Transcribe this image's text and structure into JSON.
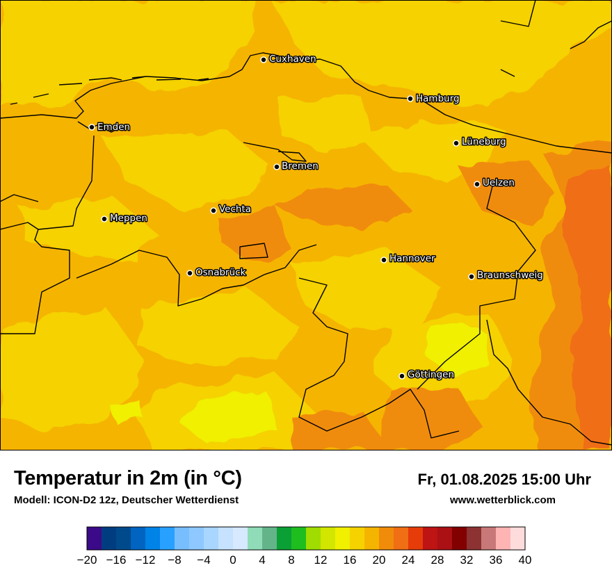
{
  "map": {
    "cities": [
      {
        "name": "Cuxhaven"
      },
      {
        "name": "Hamburg"
      },
      {
        "name": "Emden"
      },
      {
        "name": "Lüneburg"
      },
      {
        "name": "Bremen"
      },
      {
        "name": "Uelzen"
      },
      {
        "name": "Vechta"
      },
      {
        "name": "Meppen"
      },
      {
        "name": "Hannover"
      },
      {
        "name": "Osnabrück"
      },
      {
        "name": "Braunschweig"
      },
      {
        "name": "Göttingen"
      }
    ]
  },
  "footer": {
    "title": "Temperatur in 2m (in °C)",
    "model": "Modell: ICON-D2 12z, Deutscher Wetterdienst",
    "datetime": "Fr, 01.08.2025 15:00 Uhr",
    "website": "www.wetterblick.com"
  },
  "legend": {
    "unit": "°C",
    "min": -20,
    "max": 40,
    "step": 2,
    "tick_labels": [
      "−20",
      "−16",
      "−12",
      "−8",
      "−4",
      "0",
      "4",
      "8",
      "12",
      "16",
      "20",
      "24",
      "28",
      "32",
      "36",
      "40"
    ],
    "colors": [
      "#3b0a88",
      "#003d80",
      "#004a8c",
      "#0064c0",
      "#0083e6",
      "#28a0ff",
      "#78beff",
      "#8ec8ff",
      "#a8d6ff",
      "#c6e2ff",
      "#d6e9ff",
      "#90dcb8",
      "#64b48a",
      "#0aa035",
      "#1ebe1e",
      "#a0dc00",
      "#d2e600",
      "#f0f000",
      "#f5d200",
      "#f5b400",
      "#f08c0a",
      "#f06e14",
      "#e63c0a",
      "#be1414",
      "#aa1014",
      "#820000",
      "#8c3232",
      "#c87878",
      "#ffb4b4",
      "#ffdcdc"
    ]
  }
}
